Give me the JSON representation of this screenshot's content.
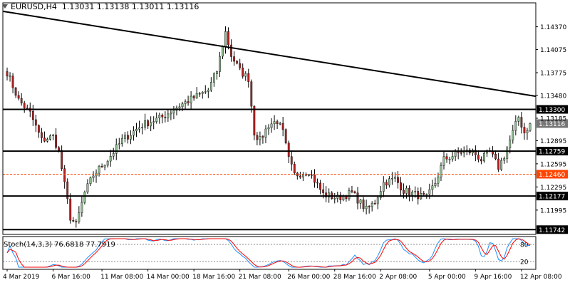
{
  "chart_data": {
    "type": "candlestick",
    "symbol": "EURUSD,H4",
    "ohlc_display": "1.13031 1.13138 1.13011 1.13116",
    "y_ticks": [
      "1.14370",
      "1.14075",
      "1.13775",
      "1.13480",
      "1.13185",
      "1.12895",
      "1.12595",
      "1.12295",
      "1.11995"
    ],
    "x_ticks": [
      "4 Mar 2019",
      "6 Mar 16:00",
      "11 Mar 08:00",
      "14 Mar 00:00",
      "18 Mar 16:00",
      "21 Mar 08:00",
      "26 Mar 00:00",
      "28 Mar 16:00",
      "2 Apr 08:00",
      "5 Apr 00:00",
      "9 Apr 16:00",
      "12 Apr 08:00"
    ],
    "ylim": [
      1.1168,
      1.1468
    ],
    "levels": [
      {
        "label": "1.13300",
        "value": 1.133,
        "style": "solid",
        "color": "#000000"
      },
      {
        "label": "1.12759",
        "value": 1.12759,
        "style": "solid",
        "color": "#000000"
      },
      {
        "label": "1.12460",
        "value": 1.1246,
        "style": "dashed",
        "color": "#ff4500"
      },
      {
        "label": "1.12177",
        "value": 1.12177,
        "style": "solid",
        "color": "#000000"
      },
      {
        "label": "1.11742",
        "value": 1.11742,
        "style": "solid",
        "color": "#000000"
      }
    ],
    "current_price": "1.13116",
    "trendline": {
      "start_value": 1.1457,
      "end_value": 1.1347
    },
    "price_path": [
      [
        0,
        1.1378
      ],
      [
        4,
        1.1342
      ],
      [
        8,
        1.1325
      ],
      [
        12,
        1.129
      ],
      [
        16,
        1.1295
      ],
      [
        18,
        1.1275
      ],
      [
        20,
        1.1232
      ],
      [
        22,
        1.119
      ],
      [
        24,
        1.118
      ],
      [
        27,
        1.1222
      ],
      [
        30,
        1.1245
      ],
      [
        35,
        1.1265
      ],
      [
        40,
        1.129
      ],
      [
        47,
        1.131
      ],
      [
        54,
        1.132
      ],
      [
        60,
        1.1335
      ],
      [
        65,
        1.1345
      ],
      [
        70,
        1.1355
      ],
      [
        73,
        1.138
      ],
      [
        76,
        1.143
      ],
      [
        78,
        1.14
      ],
      [
        81,
        1.138
      ],
      [
        84,
        1.137
      ],
      [
        86,
        1.13
      ],
      [
        88,
        1.129
      ],
      [
        91,
        1.131
      ],
      [
        94,
        1.1315
      ],
      [
        96,
        1.13
      ],
      [
        98,
        1.1265
      ],
      [
        100,
        1.1245
      ],
      [
        105,
        1.125
      ],
      [
        110,
        1.122
      ],
      [
        115,
        1.1215
      ],
      [
        120,
        1.1222
      ],
      [
        125,
        1.12
      ],
      [
        128,
        1.121
      ],
      [
        131,
        1.1235
      ],
      [
        135,
        1.124
      ],
      [
        138,
        1.1225
      ],
      [
        142,
        1.122
      ],
      [
        146,
        1.1215
      ],
      [
        149,
        1.1235
      ],
      [
        152,
        1.1265
      ],
      [
        155,
        1.127
      ],
      [
        158,
        1.1275
      ],
      [
        162,
        1.1275
      ],
      [
        165,
        1.1265
      ],
      [
        168,
        1.1275
      ],
      [
        171,
        1.1255
      ],
      [
        173,
        1.127
      ],
      [
        176,
        1.13
      ],
      [
        178,
        1.132
      ],
      [
        180,
        1.13
      ],
      [
        182,
        1.1312
      ]
    ],
    "n_candles": 183,
    "indicator": {
      "name": "Stoch(14,3,3)",
      "label": "Stoch(14,3,3) 76.6818 77.7919",
      "main": 76.6818,
      "signal": 77.7919,
      "ylim": [
        0,
        100
      ],
      "levels": [
        80,
        20
      ],
      "level_labels": [
        "80",
        "20"
      ],
      "main_color": "#1e90ff",
      "signal_color": "#ff0000"
    },
    "colors": {
      "bull": "#8fbc8f",
      "bear": "#b22222",
      "wick": "#000000",
      "grid": "#ffffff",
      "axis": "#000000",
      "dashed_level": "#ff4500"
    },
    "grid": false
  }
}
